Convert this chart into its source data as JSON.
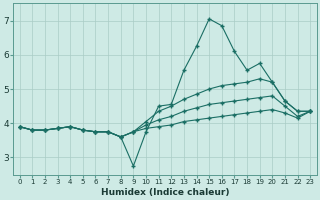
{
  "xlabel": "Humidex (Indice chaleur)",
  "xlim_min": -0.5,
  "xlim_max": 23.5,
  "ylim_min": 2.5,
  "ylim_max": 7.5,
  "yticks": [
    3,
    4,
    5,
    6,
    7
  ],
  "xticks": [
    0,
    1,
    2,
    3,
    4,
    5,
    6,
    7,
    8,
    9,
    10,
    11,
    12,
    13,
    14,
    15,
    16,
    17,
    18,
    19,
    20,
    21,
    22,
    23
  ],
  "bg_color": "#ceeae5",
  "grid_color": "#aaccc6",
  "line_color": "#1a6e64",
  "lines": [
    [
      3.9,
      3.8,
      3.8,
      3.85,
      3.9,
      3.8,
      3.75,
      3.75,
      3.6,
      2.75,
      3.75,
      4.5,
      4.55,
      5.55,
      6.25,
      7.05,
      6.85,
      6.1,
      5.55,
      5.75,
      5.2,
      4.65,
      4.35,
      4.35
    ],
    [
      3.9,
      3.8,
      3.8,
      3.85,
      3.9,
      3.8,
      3.75,
      3.75,
      3.6,
      3.75,
      4.05,
      4.35,
      4.5,
      4.7,
      4.85,
      5.0,
      5.1,
      5.15,
      5.2,
      5.3,
      5.2,
      4.65,
      4.35,
      4.35
    ],
    [
      3.9,
      3.8,
      3.8,
      3.85,
      3.9,
      3.8,
      3.75,
      3.75,
      3.6,
      3.75,
      3.95,
      4.1,
      4.2,
      4.35,
      4.45,
      4.55,
      4.6,
      4.65,
      4.7,
      4.75,
      4.8,
      4.5,
      4.2,
      4.35
    ],
    [
      3.9,
      3.8,
      3.8,
      3.85,
      3.9,
      3.8,
      3.75,
      3.75,
      3.6,
      3.75,
      3.85,
      3.9,
      3.95,
      4.05,
      4.1,
      4.15,
      4.2,
      4.25,
      4.3,
      4.35,
      4.4,
      4.3,
      4.15,
      4.35
    ]
  ]
}
